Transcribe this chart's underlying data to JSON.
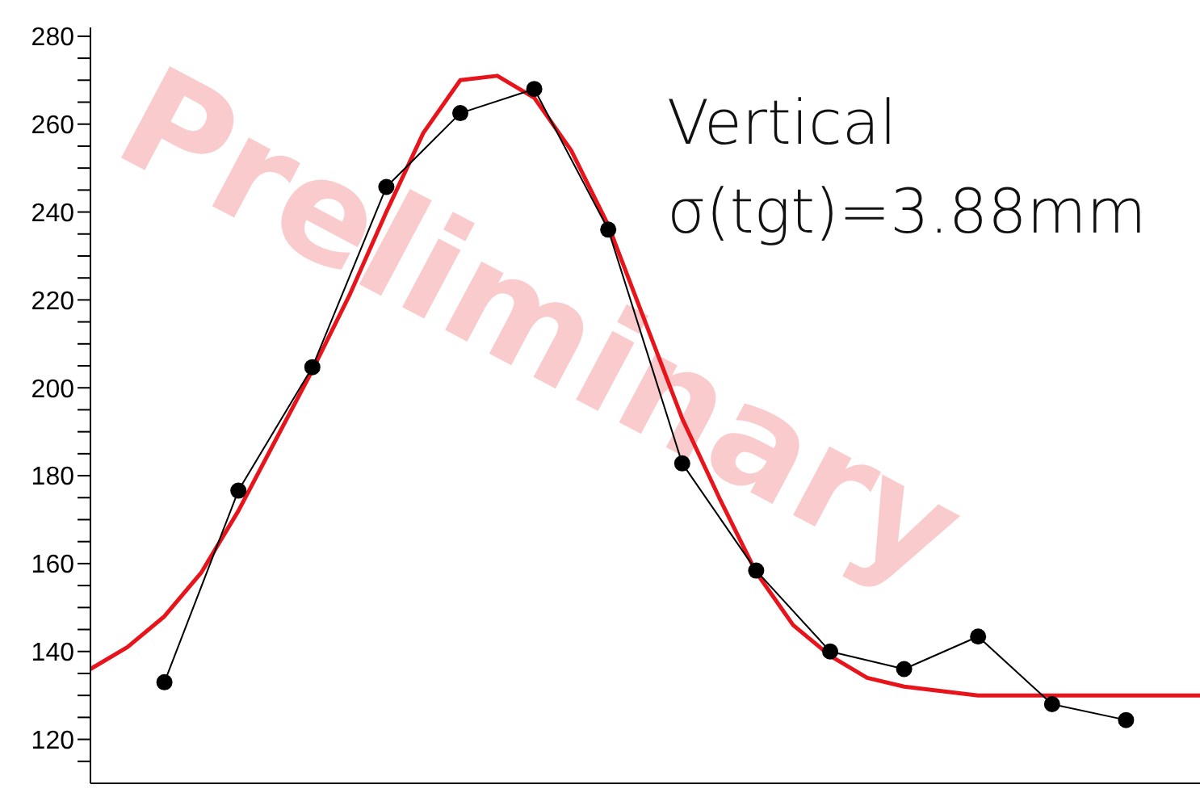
{
  "chart_data": {
    "type": "line",
    "annotations": [
      "Vertical",
      "σ(tgt)=3.88mm",
      "Preliminary"
    ],
    "categories": [
      null,
      null,
      null,
      null,
      null,
      null,
      null,
      null,
      null,
      null,
      null,
      null,
      null,
      null,
      null,
      null,
      null,
      null,
      null,
      null,
      null,
      null,
      null,
      null,
      null,
      null,
      null,
      null,
      null,
      null,
      null
    ],
    "ylim": [
      110,
      282
    ],
    "yticks": [
      {
        "value": 115,
        "label": null
      },
      120,
      {
        "value": 125,
        "label": null
      },
      {
        "value": 130,
        "label": null
      },
      {
        "value": 135,
        "label": null
      },
      140,
      {
        "value": 145,
        "label": null
      },
      {
        "value": 150,
        "label": null
      },
      {
        "value": 155,
        "label": null
      },
      160,
      {
        "value": 165,
        "label": null
      },
      {
        "value": 170,
        "label": null
      },
      {
        "value": 175,
        "label": null
      },
      180,
      {
        "value": 185,
        "label": null
      },
      {
        "value": 190,
        "label": null
      },
      {
        "value": 195,
        "label": null
      },
      200,
      {
        "value": 205,
        "label": null
      },
      {
        "value": 210,
        "label": null
      },
      {
        "value": 215,
        "label": null
      },
      220,
      {
        "value": 225,
        "label": null
      },
      {
        "value": 230,
        "label": null
      },
      {
        "value": 235,
        "label": null
      },
      240,
      {
        "value": 245,
        "label": null
      },
      {
        "value": 250,
        "label": null
      },
      {
        "value": 255,
        "label": null
      },
      260,
      {
        "value": 265,
        "label": null
      },
      {
        "value": 270,
        "label": null
      },
      {
        "value": 275,
        "label": null
      },
      280
    ],
    "tick_labels": "y",
    "series": [
      {
        "color": "#e8141b",
        "marker": "none",
        "values": [
          136,
          141,
          148,
          158,
          172,
          188,
          204,
          221,
          240,
          258,
          270,
          271,
          266,
          254,
          237,
          215,
          193,
          175,
          158,
          146,
          139,
          134,
          132,
          131,
          130,
          130,
          130,
          130,
          130,
          130,
          130
        ]
      },
      {
        "color": "#000000",
        "marker": "circle",
        "values": [
          null,
          null,
          133,
          null,
          176.6,
          null,
          204.7,
          null,
          245.7,
          null,
          262.5,
          null,
          268,
          null,
          236,
          null,
          182.8,
          null,
          158.4,
          null,
          140,
          null,
          136,
          null,
          143.4,
          null,
          128,
          null,
          124.4,
          null,
          null
        ]
      }
    ]
  }
}
